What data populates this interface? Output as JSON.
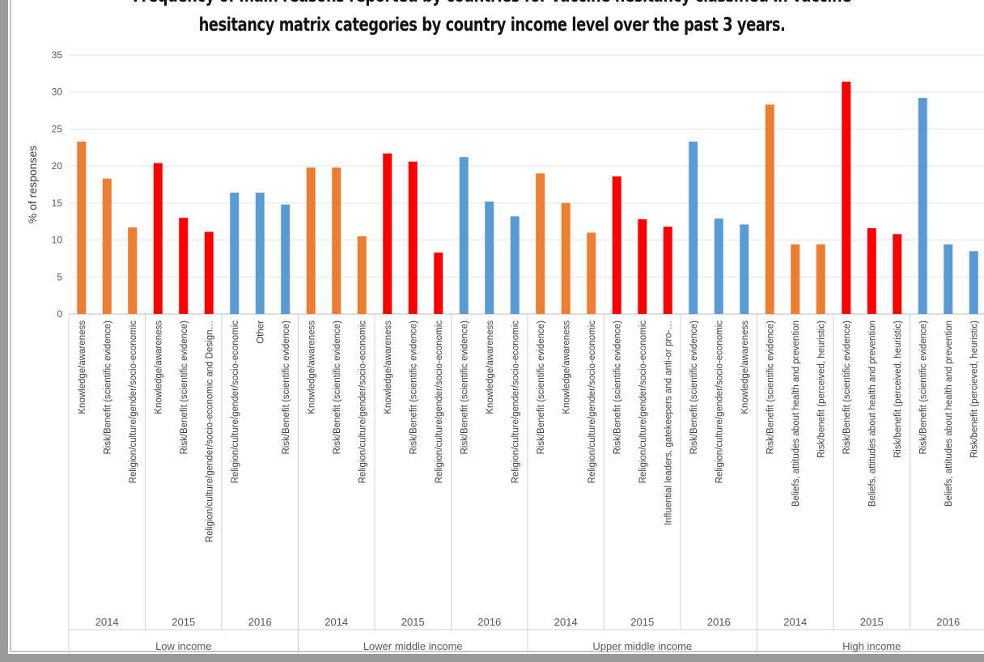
{
  "chart_data": {
    "type": "bar",
    "title_lines": [
      "Frequency of main reasons reported by countries for vaccine hesitancy classified in vaccine",
      "hesitancy matrix categories by country income level over the past 3 years."
    ],
    "ylabel": "% of responses",
    "xlabel": "",
    "ylim": [
      0,
      35
    ],
    "yticks": [
      0,
      5,
      10,
      15,
      20,
      25,
      30,
      35
    ],
    "grid": true,
    "legend": "none",
    "colors": {
      "2014": "#ED7D31",
      "2015": "#FF0000",
      "2016": "#5B9BD5"
    },
    "groups": [
      {
        "income": "Low income",
        "years": [
          {
            "year": "2014",
            "bars": [
              {
                "label": "Knowledge/awareness",
                "value": 23.3
              },
              {
                "label": "Risk/Benefit (scientific evidence)",
                "value": 18.3
              },
              {
                "label": "Religion/culture/gender/socio-economic",
                "value": 11.7
              }
            ]
          },
          {
            "year": "2015",
            "bars": [
              {
                "label": "Knowledge/awareness",
                "value": 20.4
              },
              {
                "label": "Risk/Benefit (scientific evidence)",
                "value": 13.0
              },
              {
                "label": "Religion/culture/gender/socio-economic and Design…",
                "value": 11.1
              }
            ]
          },
          {
            "year": "2016",
            "bars": [
              {
                "label": "Religion/culture/gender/socio-economic",
                "value": 16.4
              },
              {
                "label": "Other",
                "value": 16.4
              },
              {
                "label": "Risk/Benefit (scientific evidence)",
                "value": 14.8
              }
            ]
          }
        ]
      },
      {
        "income": "Lower middle income",
        "years": [
          {
            "year": "2014",
            "bars": [
              {
                "label": "Knowledge/awareness",
                "value": 19.8
              },
              {
                "label": "Risk/Benefit (scientific evidence)",
                "value": 19.8
              },
              {
                "label": "Religion/culture/gender/socio-economic",
                "value": 10.5
              }
            ]
          },
          {
            "year": "2015",
            "bars": [
              {
                "label": "Knowledge/awareness",
                "value": 21.7
              },
              {
                "label": "Risk/Benefit (scientific evidence)",
                "value": 20.6
              },
              {
                "label": "Religion/culture/gender/socio-economic",
                "value": 8.3
              }
            ]
          },
          {
            "year": "2016",
            "bars": [
              {
                "label": "Risk/Benefit (scientific evidence)",
                "value": 21.2
              },
              {
                "label": "Knowledge/awareness",
                "value": 15.2
              },
              {
                "label": "Religion/culture/gender/socio-economic",
                "value": 13.2
              }
            ]
          }
        ]
      },
      {
        "income": "Upper middle income",
        "years": [
          {
            "year": "2014",
            "bars": [
              {
                "label": "Risk/Benefit (scientific evidence)",
                "value": 19.0
              },
              {
                "label": "Knowledge/awareness",
                "value": 15.0
              },
              {
                "label": "Religion/culture/gender/socio-economic",
                "value": 11.0
              }
            ]
          },
          {
            "year": "2015",
            "bars": [
              {
                "label": "Risk/Benefit (scientific evidence)",
                "value": 18.6
              },
              {
                "label": "Religion/culture/gender/socio-economic",
                "value": 12.8
              },
              {
                "label": "Influential leaders, gatekeepers and anti-or pro-…",
                "value": 11.8
              }
            ]
          },
          {
            "year": "2016",
            "bars": [
              {
                "label": "Risk/Benefit (scientific evidence)",
                "value": 23.3
              },
              {
                "label": "Religion/culture/gender/socio-economic",
                "value": 12.9
              },
              {
                "label": "Knowledge/awareness",
                "value": 12.1
              }
            ]
          }
        ]
      },
      {
        "income": "High income",
        "years": [
          {
            "year": "2014",
            "bars": [
              {
                "label": "Risk/Benefit (scientific evidence)",
                "value": 28.3
              },
              {
                "label": "Beliefs, attitudes about health and prevention",
                "value": 9.4
              },
              {
                "label": "Risk/benefit (perceived, heuristic)",
                "value": 9.4
              }
            ]
          },
          {
            "year": "2015",
            "bars": [
              {
                "label": "Risk/Benefit (scientific evidence)",
                "value": 31.4
              },
              {
                "label": "Beliefs, attitudes about health and prevention",
                "value": 11.6
              },
              {
                "label": "Risk/benefit (perceived, heuristic)",
                "value": 10.8
              }
            ]
          },
          {
            "year": "2016",
            "bars": [
              {
                "label": "Risk/Benefit (scientific evidence)",
                "value": 29.2
              },
              {
                "label": "Beliefs, attitudes about health and prevention",
                "value": 9.4
              },
              {
                "label": "Risk/benefit (percieved, heuristic)",
                "value": 8.5
              }
            ]
          }
        ]
      }
    ]
  }
}
